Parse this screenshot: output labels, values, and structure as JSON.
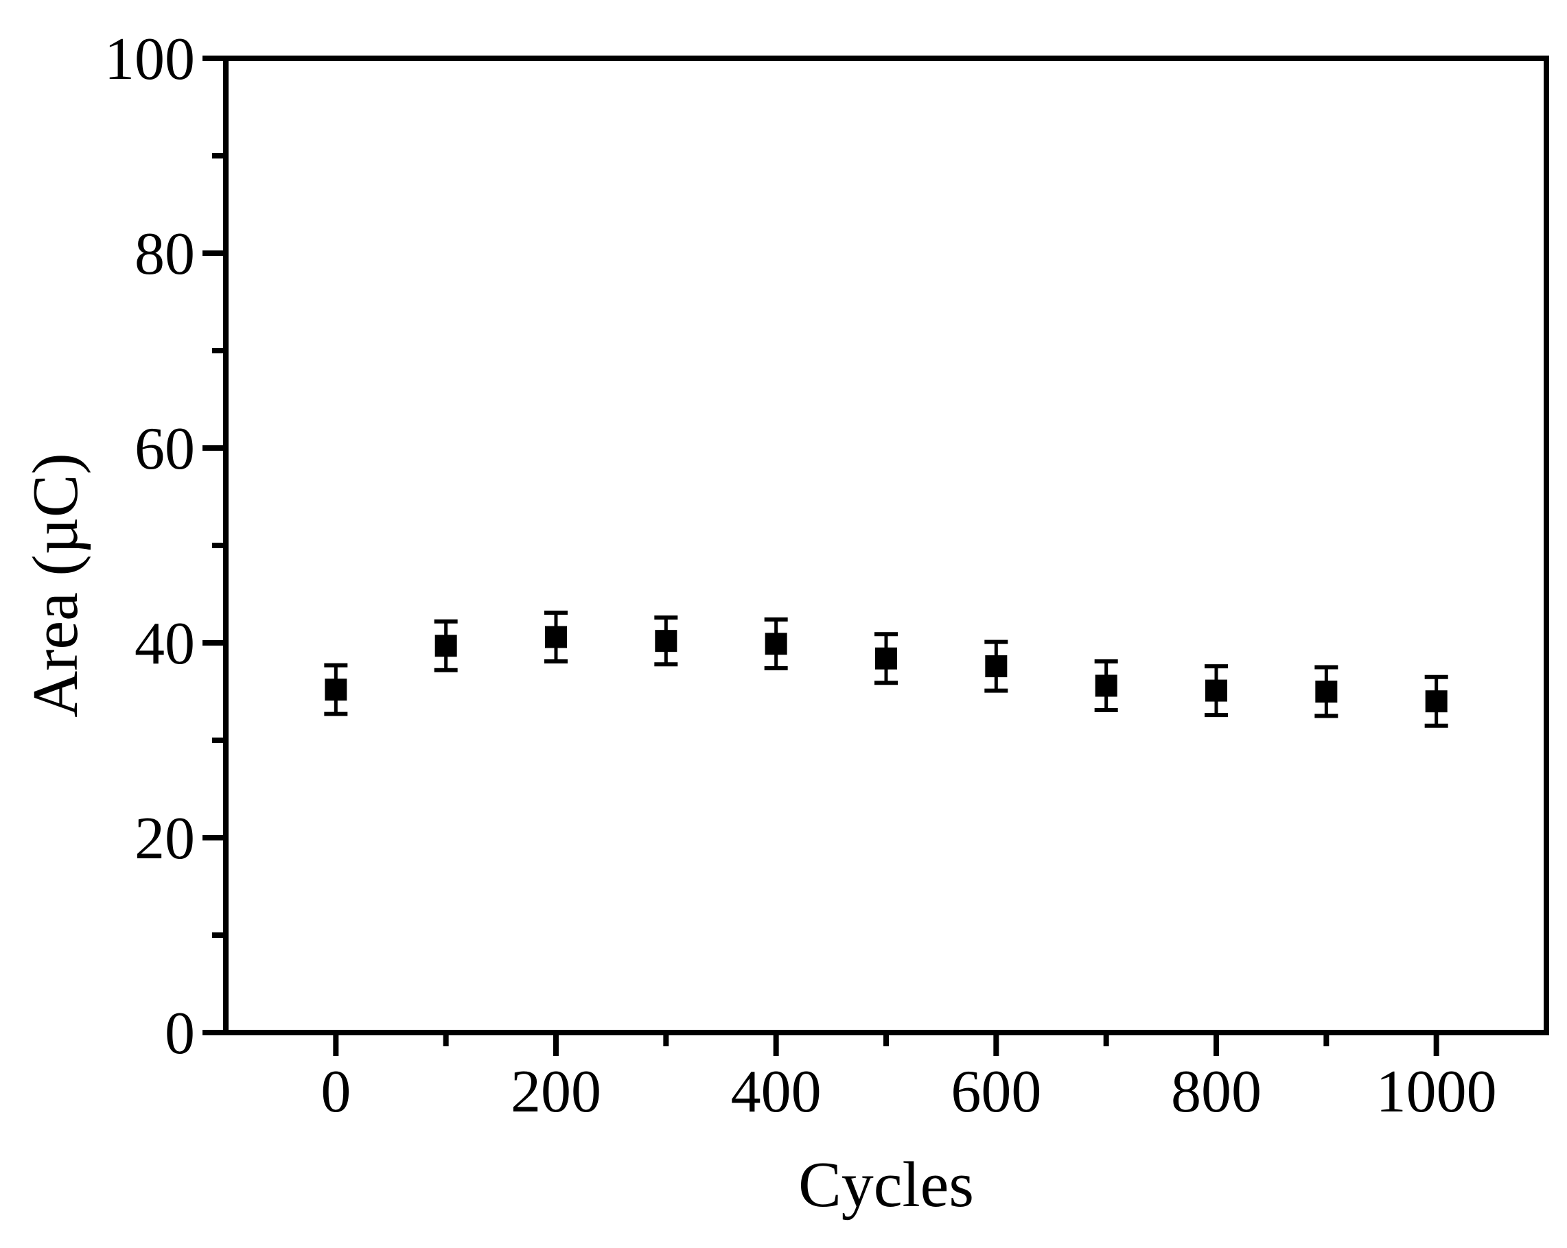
{
  "figure": {
    "background": "#ffffff",
    "foreground": "#000000"
  },
  "chart_data": {
    "type": "scatter",
    "title": "",
    "xlabel": "Cycles",
    "ylabel": "Area (µC)",
    "marker": "filled-square",
    "marker_color": "#000000",
    "grid": false,
    "frame": "full-box",
    "xlim": [
      -100,
      1100
    ],
    "ylim": [
      0,
      100
    ],
    "x": [
      0,
      100,
      200,
      300,
      400,
      500,
      600,
      700,
      800,
      900,
      1000
    ],
    "y": [
      35.2,
      39.7,
      40.6,
      40.2,
      39.9,
      38.4,
      37.6,
      35.6,
      35.1,
      35.0,
      34.0
    ],
    "yerr": [
      2.5,
      2.5,
      2.5,
      2.4,
      2.5,
      2.5,
      2.5,
      2.5,
      2.5,
      2.5,
      2.5
    ],
    "x_major_ticks": [
      0,
      200,
      400,
      600,
      800,
      1000
    ],
    "x_tick_labels": [
      "0",
      "200",
      "400",
      "600",
      "800",
      "1000"
    ],
    "x_minor_ticks": [
      100,
      300,
      500,
      700,
      900
    ],
    "y_major_ticks": [
      0,
      20,
      40,
      60,
      80,
      100
    ],
    "y_tick_labels": [
      "0",
      "20",
      "40",
      "60",
      "80",
      "100"
    ],
    "y_minor_ticks": [
      10,
      30,
      50,
      70,
      90
    ]
  }
}
